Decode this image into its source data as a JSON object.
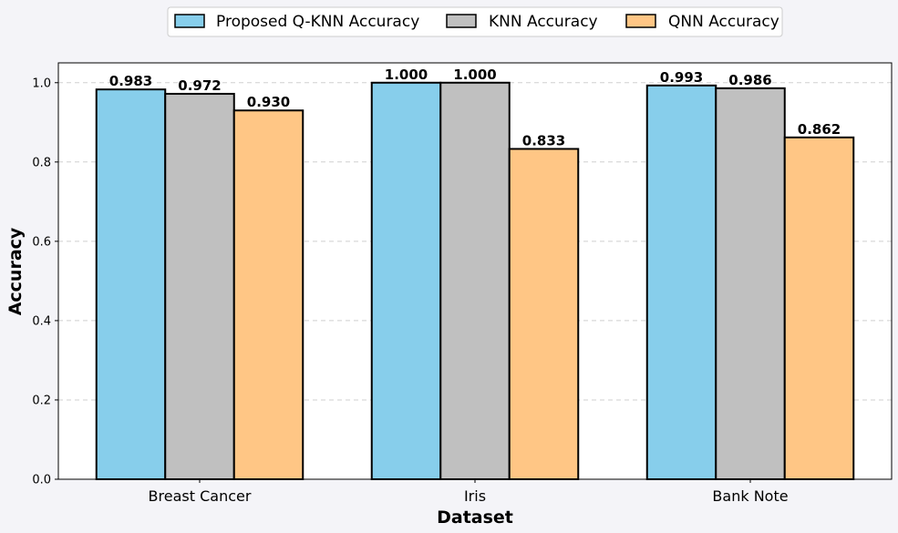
{
  "chart_data": {
    "type": "bar",
    "title": "",
    "xlabel": "Dataset",
    "ylabel": "Accuracy",
    "categories": [
      "Breast Cancer",
      "Iris",
      "Bank Note"
    ],
    "series": [
      {
        "name": "Proposed Q-KNN Accuracy",
        "color": "#87ceeb",
        "values": [
          0.983,
          1.0,
          0.993
        ],
        "labels": [
          "0.983",
          "1.000",
          "0.993"
        ]
      },
      {
        "name": "KNN Accuracy",
        "color": "#c0c0c0",
        "values": [
          0.972,
          1.0,
          0.986
        ],
        "labels": [
          "0.972",
          "1.000",
          "0.986"
        ]
      },
      {
        "name": "QNN Accuracy",
        "color": "#ffc685",
        "values": [
          0.93,
          0.833,
          0.862
        ],
        "labels": [
          "0.930",
          "0.833",
          "0.862"
        ]
      }
    ],
    "ylim": [
      0,
      1.05
    ],
    "yticks": [
      "0.0",
      "0.2",
      "0.4",
      "0.6",
      "0.8",
      "1.0"
    ],
    "grid": true,
    "legend": "top-center"
  }
}
